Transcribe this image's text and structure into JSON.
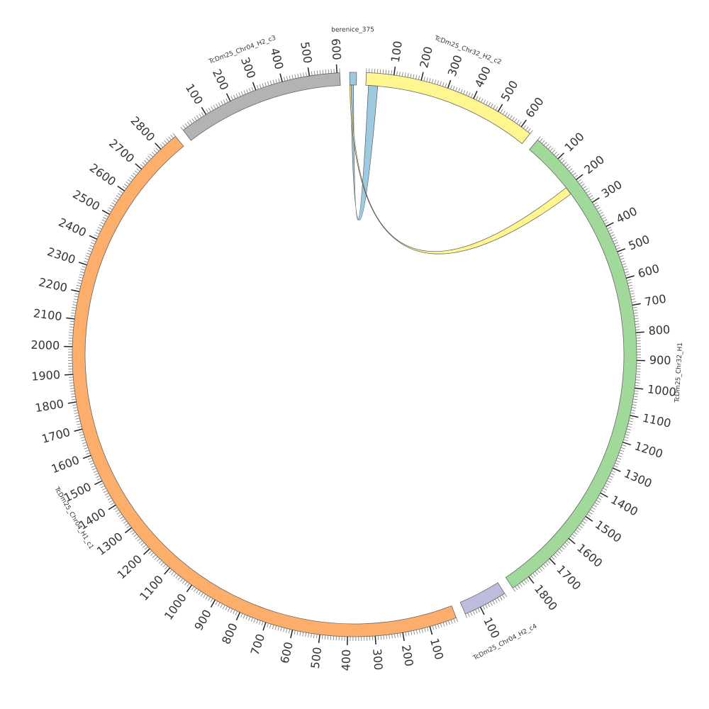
{
  "chart_data": {
    "type": "circos",
    "minor_tick_interval": 10,
    "segments": [
      {
        "name": "berenice_375",
        "color": "#9ecae1",
        "range": [
          0,
          25
        ],
        "ticks": []
      },
      {
        "name": "TcDm25_Chr32_H2_c2",
        "color": "#fff68f",
        "range": [
          0,
          640
        ],
        "ticks": [
          100,
          200,
          300,
          400,
          500,
          600
        ]
      },
      {
        "name": "TcDm25_Chr32_H1",
        "color": "#a1d99b",
        "range": [
          0,
          1870
        ],
        "ticks": [
          100,
          200,
          300,
          400,
          500,
          600,
          700,
          800,
          900,
          1000,
          1100,
          1200,
          1300,
          1400,
          1500,
          1600,
          1700,
          1800
        ]
      },
      {
        "name": "TcDm25_Chr04_H2_c4",
        "color": "#bcbddc",
        "range": [
          0,
          160
        ],
        "ticks": [
          100
        ]
      },
      {
        "name": "TcDm25_Chr04_H1_c1",
        "color": "#fdae6b",
        "range": [
          0,
          2870
        ],
        "ticks": [
          100,
          200,
          300,
          400,
          500,
          600,
          700,
          800,
          900,
          1000,
          1100,
          1200,
          1300,
          1400,
          1500,
          1600,
          1700,
          1800,
          1900,
          2000,
          2100,
          2200,
          2300,
          2400,
          2500,
          2600,
          2700,
          2800
        ]
      },
      {
        "name": "TcDm25_Chr04_H2_c3",
        "color": "#b3b3b3",
        "range": [
          0,
          610
        ],
        "ticks": [
          100,
          200,
          300,
          400,
          500,
          600
        ]
      }
    ],
    "links": [
      {
        "source": 0,
        "source_range": [
          4,
          14
        ],
        "target": 1,
        "target_range": [
          10,
          45
        ],
        "color": "#9ecae1"
      },
      {
        "source": 0,
        "source_range": [
          0,
          5
        ],
        "target": 2,
        "target_range": [
          200,
          230
        ],
        "color": "#fff68f"
      }
    ]
  }
}
